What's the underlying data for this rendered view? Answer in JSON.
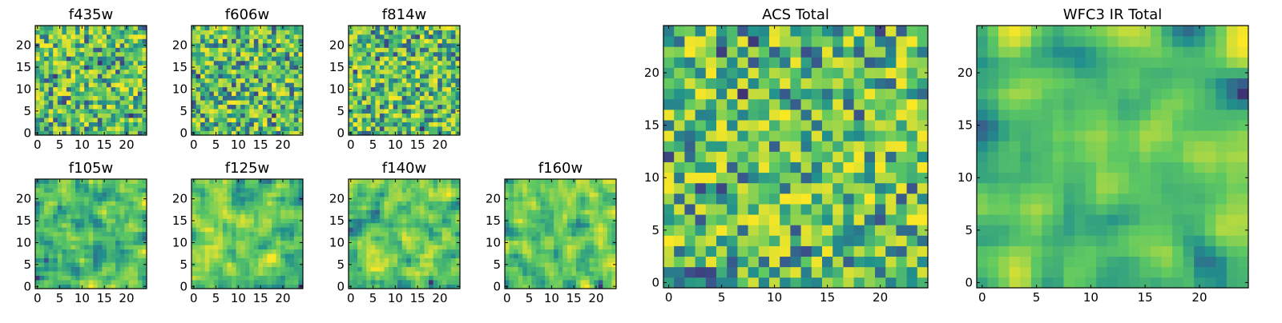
{
  "chart_data": [
    {
      "type": "heatmap",
      "title": "f435w",
      "xticks": [
        "0",
        "5",
        "10",
        "15",
        "20"
      ],
      "yticks": [
        "0",
        "5",
        "10",
        "15",
        "20"
      ],
      "xlim": [
        -0.5,
        24.5
      ],
      "ylim": [
        -0.5,
        24.5
      ],
      "grid": false,
      "colormap": "viridis",
      "seed": 11,
      "smooth": 0
    },
    {
      "type": "heatmap",
      "title": "f606w",
      "xticks": [
        "0",
        "5",
        "10",
        "15",
        "20"
      ],
      "yticks": [
        "0",
        "5",
        "10",
        "15",
        "20"
      ],
      "xlim": [
        -0.5,
        24.5
      ],
      "ylim": [
        -0.5,
        24.5
      ],
      "grid": false,
      "colormap": "viridis",
      "seed": 23,
      "smooth": 0
    },
    {
      "type": "heatmap",
      "title": "f814w",
      "xticks": [
        "0",
        "5",
        "10",
        "15",
        "20"
      ],
      "yticks": [
        "0",
        "5",
        "10",
        "15",
        "20"
      ],
      "xlim": [
        -0.5,
        24.5
      ],
      "ylim": [
        -0.5,
        24.5
      ],
      "grid": false,
      "colormap": "viridis",
      "seed": 37,
      "smooth": 0
    },
    {
      "type": "heatmap",
      "title": "f105w",
      "xticks": [
        "0",
        "5",
        "10",
        "15",
        "20"
      ],
      "yticks": [
        "0",
        "5",
        "10",
        "15",
        "20"
      ],
      "xlim": [
        -0.5,
        24.5
      ],
      "ylim": [
        -0.5,
        24.5
      ],
      "grid": false,
      "colormap": "viridis",
      "seed": 41,
      "smooth": 1
    },
    {
      "type": "heatmap",
      "title": "f125w",
      "xticks": [
        "0",
        "5",
        "10",
        "15",
        "20"
      ],
      "yticks": [
        "0",
        "5",
        "10",
        "15",
        "20"
      ],
      "xlim": [
        -0.5,
        24.5
      ],
      "ylim": [
        -0.5,
        24.5
      ],
      "grid": false,
      "colormap": "viridis",
      "seed": 53,
      "smooth": 1
    },
    {
      "type": "heatmap",
      "title": "f140w",
      "xticks": [
        "0",
        "5",
        "10",
        "15",
        "20"
      ],
      "yticks": [
        "0",
        "5",
        "10",
        "15",
        "20"
      ],
      "xlim": [
        -0.5,
        24.5
      ],
      "ylim": [
        -0.5,
        24.5
      ],
      "grid": false,
      "colormap": "viridis",
      "seed": 67,
      "smooth": 1
    },
    {
      "type": "heatmap",
      "title": "f160w",
      "xticks": [
        "0",
        "5",
        "10",
        "15",
        "20"
      ],
      "yticks": [
        "0",
        "5",
        "10",
        "15",
        "20"
      ],
      "xlim": [
        -0.5,
        24.5
      ],
      "ylim": [
        -0.5,
        24.5
      ],
      "grid": false,
      "colormap": "viridis",
      "seed": 79,
      "smooth": 1
    },
    {
      "type": "heatmap",
      "title": "ACS Total",
      "xticks": [
        "0",
        "5",
        "10",
        "15",
        "20"
      ],
      "yticks": [
        "0",
        "5",
        "10",
        "15",
        "20"
      ],
      "xlim": [
        -0.5,
        24.5
      ],
      "ylim": [
        -0.5,
        24.5
      ],
      "grid": false,
      "colormap": "viridis",
      "seed": 97,
      "smooth": 0
    },
    {
      "type": "heatmap",
      "title": "WFC3 IR Total",
      "xticks": [
        "0",
        "5",
        "10",
        "15",
        "20"
      ],
      "yticks": [
        "0",
        "5",
        "10",
        "15",
        "20"
      ],
      "xlim": [
        -0.5,
        24.5
      ],
      "ylim": [
        -0.5,
        24.5
      ],
      "grid": false,
      "colormap": "viridis",
      "seed": 113,
      "smooth": 2
    }
  ],
  "colors": {
    "viridis_stops": [
      "#440154",
      "#3b528b",
      "#21918c",
      "#5ec962",
      "#fde725"
    ],
    "axes_frame": "#000000",
    "background": "#ffffff"
  }
}
